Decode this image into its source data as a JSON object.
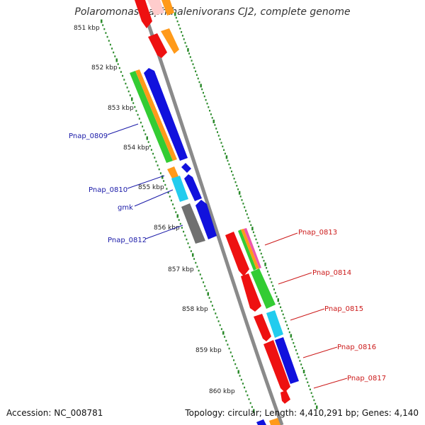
{
  "title": "Polaromonas naphthalenivorans CJ2, complete genome",
  "footer": {
    "accession": "Accession: NC_008781",
    "summary": "Topology: circular; Length: 4,410,291 bp; Genes: 4,140"
  },
  "ticks": [
    "851 kbp",
    "852 kbp",
    "853 kbp",
    "854 kbp",
    "855 kbp",
    "856 kbp",
    "857 kbp",
    "858 kbp",
    "859 kbp",
    "860 kbp"
  ],
  "gene_labels": {
    "left": [
      "Pnap_0809",
      "Pnap_0810",
      "gmk",
      "Pnap_0812"
    ],
    "right": [
      "Pnap_0813",
      "Pnap_0814",
      "Pnap_0815",
      "Pnap_0816",
      "Pnap_0817"
    ]
  },
  "colors": {
    "backbone": "#8c8c8c",
    "tick_dots": "#2a8a2a",
    "left_label": "#1a1aa8",
    "right_label": "#cc1a1a",
    "red": "#ee1111",
    "orange": "#ff9a1a",
    "blue": "#1111dd",
    "green": "#33cc33",
    "cyan": "#22ccee",
    "gray": "#707070",
    "pink": "#ee55aa",
    "lightpink": "#ffcccc"
  }
}
